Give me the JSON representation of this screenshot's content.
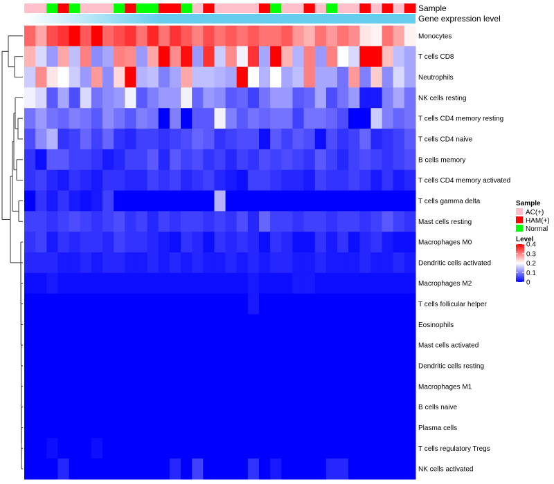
{
  "chart_data": {
    "type": "heatmap",
    "title": "",
    "annotation_labels": [
      "Sample",
      "Gene expression level"
    ],
    "sample_groups": [
      "AC(+)",
      "AC(+)",
      "Normal",
      "HAM(+)",
      "Normal",
      "AC(+)",
      "AC(+)",
      "AC(+)",
      "Normal",
      "HAM(+)",
      "Normal",
      "Normal",
      "HAM(+)",
      "HAM(+)",
      "Normal",
      "AC(+)",
      "HAM(+)",
      "AC(+)",
      "AC(+)",
      "AC(+)",
      "AC(+)",
      "HAM(+)",
      "Normal",
      "AC(+)",
      "AC(+)",
      "HAM(+)",
      "AC(+)",
      "Normal",
      "AC(+)",
      "AC(+)",
      "HAM(+)",
      "AC(+)",
      "HAM(+)",
      "AC(+)",
      "HAM(+)"
    ],
    "rows": [
      "Monocytes",
      "T cells CD8",
      "Neutrophils",
      "NK cells resting",
      "T cells CD4 memory resting",
      "T cells CD4 naive",
      "B cells memory",
      "T cells CD4 memory activated",
      "T cells gamma delta",
      "Mast cells resting",
      "Macrophages M0",
      "Dendritic cells activated",
      "Macrophages M2",
      "T cells follicular helper",
      "Eosinophils",
      "Mast cells activated",
      "Dendritic cells resting",
      "Macrophages M1",
      "B cells naive",
      "Plasma cells",
      "T cells regulatory  Tregs",
      "NK cells activated"
    ],
    "values": [
      [
        0.32,
        0.27,
        0.34,
        0.36,
        0.4,
        0.33,
        0.4,
        0.32,
        0.34,
        0.36,
        0.31,
        0.37,
        0.31,
        0.36,
        0.33,
        0.3,
        0.34,
        0.31,
        0.33,
        0.31,
        0.33,
        0.31,
        0.31,
        0.33,
        0.28,
        0.26,
        0.31,
        0.28,
        0.31,
        0.29,
        0.22,
        0.21,
        0.31,
        0.27,
        0.21
      ],
      [
        0.26,
        0.17,
        0.12,
        0.27,
        0.15,
        0.3,
        0.11,
        0.13,
        0.3,
        0.29,
        0.12,
        0.27,
        0.4,
        0.29,
        0.39,
        0.12,
        0.36,
        0.16,
        0.29,
        0.19,
        0.36,
        0.13,
        0.4,
        0.26,
        0.14,
        0.3,
        0.12,
        0.3,
        0.2,
        0.17,
        0.4,
        0.4,
        0.25,
        0.15,
        0.13
      ],
      [
        0.16,
        0.29,
        0.22,
        0.2,
        0.16,
        0.12,
        0.28,
        0.11,
        0.23,
        0.4,
        0.14,
        0.15,
        0.1,
        0.13,
        0.27,
        0.15,
        0.15,
        0.14,
        0.13,
        0.4,
        0.2,
        0.14,
        0.2,
        0.13,
        0.15,
        0.3,
        0.13,
        0.13,
        0.09,
        0.28,
        0.1,
        0.24,
        0.11,
        0.17,
        0.13
      ],
      [
        0.19,
        0.17,
        0.07,
        0.13,
        0.06,
        0.17,
        0.09,
        0.11,
        0.12,
        0.19,
        0.07,
        0.1,
        0.12,
        0.12,
        0.19,
        0.08,
        0.12,
        0.11,
        0.07,
        0.08,
        0.05,
        0.09,
        0.12,
        0.12,
        0.07,
        0.08,
        0.13,
        0.06,
        0.09,
        0.12,
        0.02,
        0.02,
        0.1,
        0.13,
        0.09
      ],
      [
        0.09,
        0.12,
        0.09,
        0.08,
        0.1,
        0.09,
        0.07,
        0.11,
        0.09,
        0.07,
        0.1,
        0.09,
        0.0,
        0.1,
        0.0,
        0.07,
        0.07,
        0.19,
        0.1,
        0.07,
        0.09,
        0.08,
        0.09,
        0.09,
        0.05,
        0.09,
        0.09,
        0.08,
        0.06,
        0.0,
        0.0,
        0.16,
        0.1,
        0.08,
        0.09
      ],
      [
        0.06,
        0.11,
        0.14,
        0.04,
        0.05,
        0.08,
        0.05,
        0.08,
        0.04,
        0.03,
        0.05,
        0.05,
        0.04,
        0.05,
        0.06,
        0.08,
        0.07,
        0.04,
        0.05,
        0.06,
        0.06,
        0.01,
        0.07,
        0.05,
        0.07,
        0.06,
        0.01,
        0.06,
        0.04,
        0.05,
        0.08,
        0.03,
        0.04,
        0.05,
        0.07
      ],
      [
        0.04,
        0.01,
        0.07,
        0.07,
        0.05,
        0.05,
        0.04,
        0.02,
        0.03,
        0.05,
        0.05,
        0.07,
        0.03,
        0.07,
        0.05,
        0.06,
        0.04,
        0.05,
        0.03,
        0.05,
        0.04,
        0.06,
        0.05,
        0.06,
        0.05,
        0.04,
        0.07,
        0.05,
        0.03,
        0.05,
        0.06,
        0.05,
        0.04,
        0.05,
        0.06
      ],
      [
        0.04,
        0.05,
        0.03,
        0.02,
        0.04,
        0.03,
        0.02,
        0.04,
        0.04,
        0.03,
        0.03,
        0.05,
        0.04,
        0.05,
        0.03,
        0.04,
        0.05,
        0.03,
        0.02,
        0.01,
        0.05,
        0.05,
        0.04,
        0.03,
        0.03,
        0.02,
        0.05,
        0.04,
        0.04,
        0.05,
        0.04,
        0.02,
        0.04,
        0.02,
        0.03
      ],
      [
        0.0,
        0.04,
        0.02,
        0.04,
        0.02,
        0.01,
        0.02,
        0.05,
        0.0,
        0.0,
        0.0,
        0.0,
        0.0,
        0.0,
        0.0,
        0.0,
        0.0,
        0.14,
        0.0,
        0.0,
        0.0,
        0.0,
        0.0,
        0.0,
        0.0,
        0.0,
        0.0,
        0.0,
        0.0,
        0.0,
        0.0,
        0.0,
        0.0,
        0.0,
        0.0
      ],
      [
        0.05,
        0.05,
        0.04,
        0.05,
        0.06,
        0.05,
        0.04,
        0.05,
        0.06,
        0.04,
        0.05,
        0.03,
        0.05,
        0.04,
        0.05,
        0.05,
        0.04,
        0.05,
        0.04,
        0.06,
        0.03,
        0.08,
        0.05,
        0.05,
        0.04,
        0.05,
        0.05,
        0.04,
        0.05,
        0.05,
        0.04,
        0.05,
        0.07,
        0.05,
        0.04
      ],
      [
        0.04,
        0.05,
        0.02,
        0.04,
        0.03,
        0.04,
        0.04,
        0.03,
        0.05,
        0.04,
        0.04,
        0.03,
        0.02,
        0.01,
        0.04,
        0.03,
        0.01,
        0.04,
        0.03,
        0.04,
        0.03,
        0.01,
        0.04,
        0.03,
        0.01,
        0.01,
        0.04,
        0.02,
        0.04,
        0.01,
        0.03,
        0.04,
        0.02,
        0.01,
        0.01
      ],
      [
        0.03,
        0.03,
        0.03,
        0.02,
        0.02,
        0.03,
        0.02,
        0.03,
        0.03,
        0.02,
        0.02,
        0.03,
        0.02,
        0.03,
        0.02,
        0.03,
        0.02,
        0.02,
        0.03,
        0.02,
        0.03,
        0.02,
        0.03,
        0.03,
        0.02,
        0.02,
        0.03,
        0.02,
        0.02,
        0.02,
        0.03,
        0.02,
        0.02,
        0.03,
        0.02
      ],
      [
        0.01,
        0.01,
        0.02,
        0.01,
        0.01,
        0.01,
        0.01,
        0.01,
        0.01,
        0.01,
        0.01,
        0.01,
        0.01,
        0.01,
        0.01,
        0.01,
        0.01,
        0.01,
        0.01,
        0.01,
        0.02,
        0.01,
        0.01,
        0.01,
        0.02,
        0.02,
        0.01,
        0.01,
        0.01,
        0.01,
        0.01,
        0.01,
        0.01,
        0.01,
        0.01
      ],
      [
        0.0,
        0.0,
        0.0,
        0.0,
        0.0,
        0.0,
        0.0,
        0.0,
        0.0,
        0.0,
        0.0,
        0.0,
        0.0,
        0.0,
        0.0,
        0.0,
        0.0,
        0.0,
        0.0,
        0.0,
        0.02,
        0.0,
        0.0,
        0.0,
        0.0,
        0.0,
        0.0,
        0.0,
        0.0,
        0.0,
        0.0,
        0.0,
        0.0,
        0.0,
        0.0
      ],
      [
        0.0,
        0.0,
        0.0,
        0.0,
        0.0,
        0.0,
        0.0,
        0.0,
        0.0,
        0.0,
        0.0,
        0.0,
        0.0,
        0.0,
        0.0,
        0.0,
        0.0,
        0.0,
        0.0,
        0.0,
        0.0,
        0.0,
        0.0,
        0.0,
        0.0,
        0.0,
        0.0,
        0.0,
        0.0,
        0.0,
        0.0,
        0.0,
        0.0,
        0.0,
        0.0
      ],
      [
        0.0,
        0.0,
        0.0,
        0.0,
        0.0,
        0.0,
        0.0,
        0.0,
        0.0,
        0.0,
        0.0,
        0.0,
        0.0,
        0.0,
        0.0,
        0.0,
        0.0,
        0.0,
        0.0,
        0.0,
        0.0,
        0.0,
        0.0,
        0.0,
        0.0,
        0.0,
        0.0,
        0.0,
        0.0,
        0.0,
        0.0,
        0.0,
        0.0,
        0.0,
        0.0
      ],
      [
        0.0,
        0.0,
        0.0,
        0.0,
        0.0,
        0.0,
        0.0,
        0.0,
        0.0,
        0.0,
        0.0,
        0.0,
        0.0,
        0.0,
        0.0,
        0.0,
        0.0,
        0.0,
        0.0,
        0.0,
        0.0,
        0.0,
        0.0,
        0.0,
        0.0,
        0.0,
        0.0,
        0.0,
        0.0,
        0.0,
        0.0,
        0.0,
        0.0,
        0.0,
        0.0
      ],
      [
        0.0,
        0.0,
        0.0,
        0.0,
        0.0,
        0.0,
        0.0,
        0.0,
        0.0,
        0.0,
        0.0,
        0.0,
        0.0,
        0.0,
        0.0,
        0.0,
        0.0,
        0.0,
        0.0,
        0.0,
        0.0,
        0.0,
        0.0,
        0.0,
        0.0,
        0.0,
        0.0,
        0.0,
        0.0,
        0.0,
        0.0,
        0.0,
        0.0,
        0.0,
        0.0
      ],
      [
        0.0,
        0.0,
        0.0,
        0.0,
        0.0,
        0.0,
        0.0,
        0.0,
        0.0,
        0.0,
        0.0,
        0.0,
        0.0,
        0.0,
        0.0,
        0.0,
        0.0,
        0.0,
        0.0,
        0.0,
        0.0,
        0.0,
        0.0,
        0.0,
        0.0,
        0.0,
        0.0,
        0.0,
        0.0,
        0.0,
        0.0,
        0.0,
        0.0,
        0.0,
        0.0
      ],
      [
        0.0,
        0.0,
        0.0,
        0.0,
        0.0,
        0.0,
        0.0,
        0.0,
        0.0,
        0.0,
        0.0,
        0.0,
        0.0,
        0.0,
        0.0,
        0.0,
        0.0,
        0.0,
        0.0,
        0.0,
        0.0,
        0.0,
        0.0,
        0.0,
        0.0,
        0.0,
        0.0,
        0.0,
        0.0,
        0.0,
        0.0,
        0.0,
        0.0,
        0.0,
        0.0
      ],
      [
        0.0,
        0.0,
        0.01,
        0.0,
        0.0,
        0.0,
        0.01,
        0.0,
        0.0,
        0.0,
        0.0,
        0.0,
        0.0,
        0.0,
        0.0,
        0.0,
        0.0,
        0.0,
        0.0,
        0.0,
        0.0,
        0.0,
        0.0,
        0.0,
        0.0,
        0.0,
        0.0,
        0.0,
        0.0,
        0.0,
        0.0,
        0.0,
        0.0,
        0.0,
        0.0
      ],
      [
        0.0,
        0.0,
        0.0,
        0.03,
        0.0,
        0.0,
        0.0,
        0.0,
        0.0,
        0.0,
        0.0,
        0.0,
        0.0,
        0.03,
        0.0,
        0.05,
        0.0,
        0.0,
        0.0,
        0.0,
        0.04,
        0.0,
        0.02,
        0.0,
        0.0,
        0.0,
        0.0,
        0.03,
        0.03,
        0.0,
        0.0,
        0.0,
        0.0,
        0.0,
        0.0
      ]
    ],
    "legend": {
      "sample": {
        "title": "Sample",
        "entries": [
          {
            "label": "AC(+)",
            "color": "#FFC0CB"
          },
          {
            "label": "HAM(+)",
            "color": "#FF0000"
          },
          {
            "label": "Normal",
            "color": "#00FF00"
          }
        ]
      },
      "level": {
        "title": "Level",
        "ticks": [
          0.4,
          0.3,
          0.2,
          0.1,
          0
        ],
        "range": [
          0,
          0.4
        ],
        "colors": [
          "#0000FF",
          "#FFFFFF",
          "#FF0000"
        ]
      }
    },
    "expression_bar_color": "#66CCEE"
  }
}
